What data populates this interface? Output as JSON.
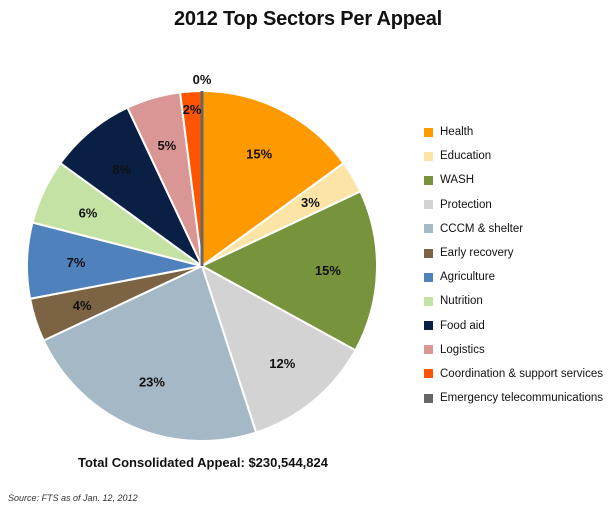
{
  "chart_data": {
    "type": "pie",
    "title": "2012 Top Sectors Per Appeal",
    "categories": [
      "Health",
      "Education",
      "WASH",
      "Protection",
      "CCCM & shelter",
      "Early recovery",
      "Agriculture",
      "Nutrition",
      "Food aid",
      "Logistics",
      "Coordination & support services",
      "Emergency telecommunications"
    ],
    "values": [
      15,
      3,
      15,
      12,
      23,
      4,
      7,
      6,
      8,
      5,
      2,
      0
    ],
    "labels": [
      "15%",
      "3%",
      "15%",
      "12%",
      "23%",
      "4%",
      "7%",
      "6%",
      "8%",
      "5%",
      "2%",
      "0%"
    ],
    "colors": [
      "#FF9900",
      "#FCE4A6",
      "#77933C",
      "#D3D3D3",
      "#A5B8C6",
      "#7B6344",
      "#4F81BD",
      "#C5E2A5",
      "#0A1F44",
      "#D99694",
      "#FF5500",
      "#666666"
    ],
    "legend_position": "right",
    "start": "top, clockwise"
  },
  "footer": {
    "total": "Total Consolidated Appeal: $230,544,824",
    "source": "Source:  FTS as of Jan. 12, 2012"
  }
}
